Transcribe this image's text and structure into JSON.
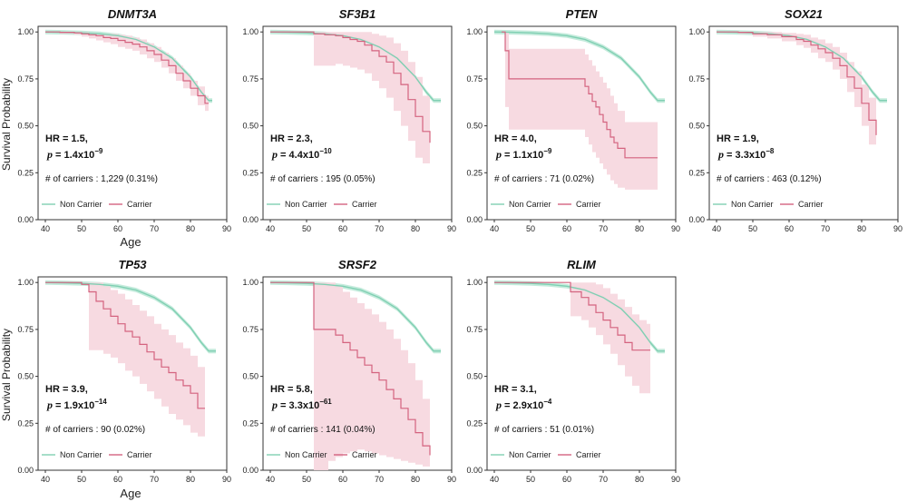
{
  "figure": {
    "ylabel": "Survival Probability",
    "xlabel": "Age",
    "legend": {
      "noncarrier": "Non Carrier",
      "carrier": "Carrier"
    },
    "carriers_prefix": "# of carriers : ",
    "colors": {
      "noncarrier": "#7fcfb2",
      "noncarrier_band": "#c4ebdc",
      "carrier": "#d4637f",
      "carrier_band": "#f7d8df"
    }
  },
  "chart_data": [
    {
      "type": "line",
      "title": "DNMT3A",
      "hr": "HR = 1.5,",
      "p_base": "1.4x10",
      "p_exp": "−9",
      "carriers": "1,229 (0.31%)",
      "xlim": [
        38,
        90
      ],
      "ylim": [
        0,
        1.03
      ],
      "xticks": [
        "40",
        "50",
        "60",
        "70",
        "80",
        "90"
      ],
      "yticks": [
        "0.00",
        "0.25",
        "0.50",
        "0.75",
        "1.00"
      ],
      "noncarrier": {
        "x": [
          40,
          45,
          50,
          55,
          60,
          65,
          70,
          75,
          80,
          83,
          85,
          86
        ],
        "y": [
          1.0,
          0.998,
          0.995,
          0.99,
          0.98,
          0.96,
          0.92,
          0.86,
          0.76,
          0.68,
          0.635,
          0.635
        ],
        "band": 0.012
      },
      "carrier": {
        "x": [
          40,
          44,
          48,
          50,
          52,
          54,
          56,
          58,
          60,
          62,
          64,
          66,
          68,
          70,
          72,
          74,
          76,
          78,
          80,
          82,
          84,
          85
        ],
        "y": [
          1.0,
          0.998,
          0.995,
          0.99,
          0.985,
          0.98,
          0.97,
          0.965,
          0.955,
          0.945,
          0.935,
          0.92,
          0.9,
          0.88,
          0.85,
          0.82,
          0.78,
          0.74,
          0.7,
          0.66,
          0.62,
          0.62
        ],
        "lo": [
          1.0,
          0.99,
          0.985,
          0.975,
          0.965,
          0.955,
          0.945,
          0.935,
          0.92,
          0.91,
          0.9,
          0.88,
          0.86,
          0.84,
          0.81,
          0.78,
          0.74,
          0.7,
          0.66,
          0.61,
          0.58,
          0.58
        ],
        "hi": [
          1.0,
          1.0,
          1.0,
          1.0,
          0.995,
          0.99,
          0.99,
          0.99,
          0.985,
          0.98,
          0.97,
          0.96,
          0.94,
          0.92,
          0.89,
          0.86,
          0.82,
          0.78,
          0.74,
          0.71,
          0.66,
          0.66
        ]
      }
    },
    {
      "type": "line",
      "title": "SF3B1",
      "hr": "HR = 2.3,",
      "p_base": "4.4x10",
      "p_exp": "−10",
      "carriers": "195 (0.05%)",
      "xlim": [
        38,
        90
      ],
      "ylim": [
        0,
        1.03
      ],
      "xticks": [
        "40",
        "50",
        "60",
        "70",
        "80",
        "90"
      ],
      "yticks": [
        "0.00",
        "0.25",
        "0.50",
        "0.75",
        "1.00"
      ],
      "noncarrier": {
        "x": [
          40,
          45,
          50,
          55,
          60,
          65,
          70,
          75,
          80,
          83,
          85,
          87
        ],
        "y": [
          1.0,
          0.998,
          0.995,
          0.99,
          0.98,
          0.96,
          0.92,
          0.86,
          0.76,
          0.68,
          0.635,
          0.635
        ],
        "band": 0.012
      },
      "carrier": {
        "x": [
          40,
          48,
          52,
          55,
          58,
          60,
          62,
          64,
          66,
          68,
          70,
          72,
          74,
          76,
          78,
          80,
          82,
          84
        ],
        "y": [
          1.0,
          1.0,
          0.99,
          0.985,
          0.98,
          0.97,
          0.96,
          0.95,
          0.93,
          0.9,
          0.87,
          0.84,
          0.78,
          0.72,
          0.64,
          0.55,
          0.47,
          0.41
        ],
        "lo": [
          1.0,
          1.0,
          0.82,
          0.82,
          0.83,
          0.82,
          0.81,
          0.8,
          0.78,
          0.74,
          0.7,
          0.65,
          0.58,
          0.5,
          0.42,
          0.33,
          0.3,
          0.28
        ],
        "hi": [
          1.0,
          1.0,
          1.0,
          1.0,
          1.0,
          1.0,
          1.0,
          1.0,
          1.0,
          0.99,
          0.98,
          0.97,
          0.94,
          0.9,
          0.84,
          0.76,
          0.66,
          0.58
        ]
      }
    },
    {
      "type": "line",
      "title": "PTEN",
      "hr": "HR = 4.0,",
      "p_base": "1.1x10",
      "p_exp": "−9",
      "carriers": "71 (0.02%)",
      "xlim": [
        38,
        90
      ],
      "ylim": [
        0,
        1.03
      ],
      "xticks": [
        "40",
        "50",
        "60",
        "70",
        "80",
        "90"
      ],
      "yticks": [
        "0.00",
        "0.25",
        "0.50",
        "0.75",
        "1.00"
      ],
      "noncarrier": {
        "x": [
          40,
          45,
          50,
          55,
          60,
          65,
          70,
          75,
          80,
          83,
          85,
          87
        ],
        "y": [
          1.0,
          0.998,
          0.995,
          0.99,
          0.98,
          0.96,
          0.92,
          0.86,
          0.76,
          0.68,
          0.635,
          0.635
        ],
        "band": 0.012
      },
      "carrier": {
        "x": [
          42,
          43,
          44,
          48,
          52,
          56,
          60,
          64,
          65,
          66,
          67,
          68,
          69,
          70,
          71,
          72,
          73,
          74,
          76,
          85
        ],
        "y": [
          1.0,
          0.9,
          0.75,
          0.75,
          0.75,
          0.75,
          0.75,
          0.75,
          0.71,
          0.67,
          0.63,
          0.6,
          0.56,
          0.52,
          0.48,
          0.44,
          0.41,
          0.38,
          0.33,
          0.33
        ],
        "lo": [
          1.0,
          0.6,
          0.48,
          0.48,
          0.48,
          0.48,
          0.48,
          0.48,
          0.44,
          0.4,
          0.36,
          0.33,
          0.3,
          0.27,
          0.24,
          0.21,
          0.19,
          0.17,
          0.16,
          0.16
        ],
        "hi": [
          1.0,
          1.0,
          0.91,
          0.91,
          0.91,
          0.91,
          0.91,
          0.91,
          0.88,
          0.85,
          0.82,
          0.79,
          0.76,
          0.73,
          0.7,
          0.66,
          0.62,
          0.58,
          0.52,
          0.52
        ]
      }
    },
    {
      "type": "line",
      "title": "SOX21",
      "hr": "HR = 1.9,",
      "p_base": "3.3x10",
      "p_exp": "−8",
      "carriers": "463 (0.12%)",
      "xlim": [
        38,
        90
      ],
      "ylim": [
        0,
        1.03
      ],
      "xticks": [
        "40",
        "50",
        "60",
        "70",
        "80",
        "90"
      ],
      "yticks": [
        "0.00",
        "0.25",
        "0.50",
        "0.75",
        "1.00"
      ],
      "noncarrier": {
        "x": [
          40,
          45,
          50,
          55,
          60,
          65,
          70,
          75,
          80,
          83,
          85,
          87
        ],
        "y": [
          1.0,
          0.998,
          0.995,
          0.99,
          0.98,
          0.96,
          0.92,
          0.86,
          0.76,
          0.68,
          0.635,
          0.635
        ],
        "band": 0.012
      },
      "carrier": {
        "x": [
          40,
          46,
          50,
          54,
          58,
          62,
          64,
          66,
          68,
          70,
          72,
          74,
          76,
          78,
          80,
          82,
          84
        ],
        "y": [
          1.0,
          0.998,
          0.99,
          0.985,
          0.975,
          0.96,
          0.95,
          0.93,
          0.91,
          0.89,
          0.86,
          0.82,
          0.76,
          0.7,
          0.62,
          0.53,
          0.45
        ],
        "lo": [
          1.0,
          0.99,
          0.975,
          0.965,
          0.95,
          0.93,
          0.915,
          0.89,
          0.86,
          0.84,
          0.8,
          0.75,
          0.68,
          0.6,
          0.5,
          0.4,
          0.3
        ],
        "hi": [
          1.0,
          1.0,
          1.0,
          1.0,
          0.995,
          0.99,
          0.985,
          0.97,
          0.96,
          0.94,
          0.92,
          0.89,
          0.84,
          0.79,
          0.72,
          0.65,
          0.58
        ]
      }
    },
    {
      "type": "line",
      "title": "TP53",
      "hr": "HR = 3.9,",
      "p_base": "1.9x10",
      "p_exp": "−14",
      "carriers": "90 (0.02%)",
      "xlim": [
        38,
        90
      ],
      "ylim": [
        0,
        1.03
      ],
      "xticks": [
        "40",
        "50",
        "60",
        "70",
        "80",
        "90"
      ],
      "yticks": [
        "0.00",
        "0.25",
        "0.50",
        "0.75",
        "1.00"
      ],
      "noncarrier": {
        "x": [
          40,
          45,
          50,
          55,
          60,
          65,
          70,
          75,
          80,
          83,
          85,
          87
        ],
        "y": [
          1.0,
          0.998,
          0.995,
          0.99,
          0.98,
          0.96,
          0.92,
          0.86,
          0.76,
          0.68,
          0.635,
          0.635
        ],
        "band": 0.012
      },
      "carrier": {
        "x": [
          40,
          50,
          52,
          54,
          56,
          58,
          60,
          62,
          64,
          66,
          68,
          70,
          72,
          74,
          76,
          78,
          80,
          82,
          84
        ],
        "y": [
          1.0,
          0.99,
          0.95,
          0.9,
          0.86,
          0.82,
          0.78,
          0.74,
          0.71,
          0.67,
          0.63,
          0.59,
          0.55,
          0.52,
          0.48,
          0.45,
          0.41,
          0.33,
          0.33
        ],
        "lo": [
          1.0,
          0.99,
          0.64,
          0.64,
          0.62,
          0.6,
          0.57,
          0.53,
          0.5,
          0.46,
          0.42,
          0.38,
          0.34,
          0.3,
          0.27,
          0.24,
          0.2,
          0.18,
          0.17
        ],
        "hi": [
          1.0,
          1.0,
          1.0,
          1.0,
          0.98,
          0.96,
          0.94,
          0.91,
          0.88,
          0.85,
          0.82,
          0.78,
          0.75,
          0.72,
          0.68,
          0.65,
          0.61,
          0.55,
          0.5
        ]
      }
    },
    {
      "type": "line",
      "title": "SRSF2",
      "hr": "HR = 5.8,",
      "p_base": "3.3x10",
      "p_exp": "−61",
      "carriers": "141 (0.04%)",
      "xlim": [
        38,
        90
      ],
      "ylim": [
        0,
        1.03
      ],
      "xticks": [
        "40",
        "50",
        "60",
        "70",
        "80",
        "90"
      ],
      "yticks": [
        "0.00",
        "0.25",
        "0.50",
        "0.75",
        "1.00"
      ],
      "noncarrier": {
        "x": [
          40,
          45,
          50,
          55,
          60,
          65,
          70,
          75,
          80,
          83,
          85,
          87
        ],
        "y": [
          1.0,
          0.998,
          0.995,
          0.99,
          0.98,
          0.96,
          0.92,
          0.86,
          0.76,
          0.68,
          0.635,
          0.635
        ],
        "band": 0.012
      },
      "carrier": {
        "x": [
          40,
          51,
          52,
          56,
          58,
          60,
          62,
          64,
          66,
          68,
          70,
          72,
          74,
          76,
          78,
          80,
          82,
          84
        ],
        "y": [
          1.0,
          1.0,
          0.75,
          0.75,
          0.72,
          0.68,
          0.64,
          0.6,
          0.56,
          0.52,
          0.48,
          0.43,
          0.38,
          0.33,
          0.27,
          0.2,
          0.13,
          0.08
        ],
        "lo": [
          1.0,
          1.0,
          0.0,
          0.05,
          0.07,
          0.09,
          0.1,
          0.11,
          0.1,
          0.09,
          0.08,
          0.07,
          0.06,
          0.05,
          0.04,
          0.03,
          0.02,
          0.02
        ],
        "hi": [
          1.0,
          1.0,
          1.0,
          1.0,
          0.98,
          0.95,
          0.92,
          0.89,
          0.86,
          0.83,
          0.79,
          0.75,
          0.7,
          0.64,
          0.57,
          0.48,
          0.38,
          0.29
        ]
      }
    },
    {
      "type": "line",
      "title": "RLIM",
      "hr": "HR = 3.1,",
      "p_base": "2.9x10",
      "p_exp": "−4",
      "carriers": "51 (0.01%)",
      "xlim": [
        38,
        90
      ],
      "ylim": [
        0,
        1.03
      ],
      "xticks": [
        "40",
        "50",
        "60",
        "70",
        "80",
        "90"
      ],
      "yticks": [
        "0.00",
        "0.25",
        "0.50",
        "0.75",
        "1.00"
      ],
      "noncarrier": {
        "x": [
          40,
          45,
          50,
          55,
          60,
          65,
          70,
          75,
          80,
          83,
          85,
          87
        ],
        "y": [
          1.0,
          0.998,
          0.995,
          0.99,
          0.98,
          0.96,
          0.92,
          0.86,
          0.76,
          0.68,
          0.635,
          0.635
        ],
        "band": 0.012
      },
      "carrier": {
        "x": [
          40,
          60,
          61,
          64,
          66,
          68,
          70,
          72,
          74,
          76,
          78,
          80,
          82,
          83
        ],
        "y": [
          1.0,
          1.0,
          0.95,
          0.92,
          0.88,
          0.84,
          0.8,
          0.76,
          0.72,
          0.68,
          0.64,
          0.64,
          0.64,
          0.64
        ],
        "lo": [
          1.0,
          1.0,
          0.82,
          0.8,
          0.76,
          0.72,
          0.67,
          0.62,
          0.56,
          0.5,
          0.45,
          0.41,
          0.41,
          0.41
        ],
        "hi": [
          1.0,
          1.0,
          1.0,
          1.0,
          1.0,
          0.99,
          0.97,
          0.94,
          0.91,
          0.87,
          0.83,
          0.8,
          0.78,
          0.78
        ]
      }
    }
  ]
}
